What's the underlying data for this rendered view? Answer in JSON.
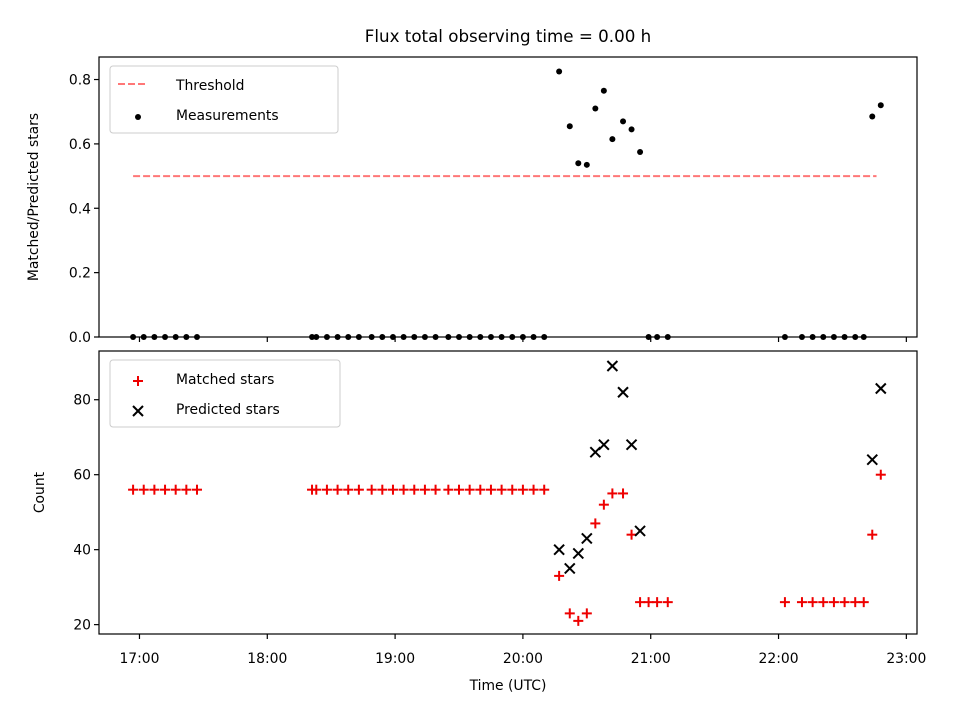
{
  "chart_data": [
    {
      "type": "scatter",
      "title": "Flux total observing time = 0.00 h",
      "ylabel": "Matched/Predicted stars",
      "xlabel": "",
      "ylim": [
        0,
        0.87
      ],
      "xlim": [
        "16:41",
        "23:05"
      ],
      "yticks": [
        {
          "value": 0.0,
          "label": "0.0"
        },
        {
          "value": 0.2,
          "label": "0.2"
        },
        {
          "value": 0.4,
          "label": "0.4"
        },
        {
          "value": 0.6,
          "label": "0.6"
        },
        {
          "value": 0.8,
          "label": "0.8"
        }
      ],
      "legend_position": "upper-left",
      "series": [
        {
          "name": "Threshold",
          "style": "dashed-line",
          "color": "#ff7777",
          "x": [
            "16:57",
            "22:46"
          ],
          "y": [
            0.5,
            0.5
          ]
        },
        {
          "name": "Measurements",
          "style": "dot",
          "color": "#000000",
          "x": [
            "16:57",
            "17:02",
            "17:07",
            "17:12",
            "17:17",
            "17:22",
            "17:27",
            "18:21",
            "18:23",
            "18:28",
            "18:33",
            "18:38",
            "18:43",
            "18:49",
            "18:54",
            "18:59",
            "19:04",
            "19:09",
            "19:14",
            "19:19",
            "19:25",
            "19:30",
            "19:35",
            "19:40",
            "19:45",
            "19:50",
            "19:55",
            "20:00",
            "20:05",
            "20:10",
            "20:17",
            "20:22",
            "20:26",
            "20:30",
            "20:34",
            "20:38",
            "20:42",
            "20:47",
            "20:51",
            "20:55",
            "20:59",
            "21:03",
            "21:08",
            "22:03",
            "22:11",
            "22:16",
            "22:21",
            "22:26",
            "22:31",
            "22:36",
            "22:40",
            "22:44",
            "22:48"
          ],
          "y": [
            0,
            0,
            0,
            0,
            0,
            0,
            0,
            0,
            0,
            0,
            0,
            0,
            0,
            0,
            0,
            0,
            0,
            0,
            0,
            0,
            0,
            0,
            0,
            0,
            0,
            0,
            0,
            0,
            0,
            0,
            0.825,
            0.655,
            0.54,
            0.535,
            0.71,
            0.765,
            0.615,
            0.67,
            0.645,
            0.575,
            0,
            0,
            0,
            0,
            0,
            0,
            0,
            0,
            0,
            0,
            0,
            0.685,
            0.72
          ]
        }
      ]
    },
    {
      "type": "scatter",
      "title": "",
      "ylabel": "Count",
      "xlabel": "Time (UTC)",
      "ylim": [
        17.5,
        93
      ],
      "xlim": [
        "16:41",
        "23:05"
      ],
      "yticks": [
        {
          "value": 20,
          "label": "20"
        },
        {
          "value": 40,
          "label": "40"
        },
        {
          "value": 60,
          "label": "60"
        },
        {
          "value": 80,
          "label": "80"
        }
      ],
      "xticks": [
        "17:00",
        "18:00",
        "19:00",
        "20:00",
        "21:00",
        "22:00",
        "23:00"
      ],
      "legend_position": "upper-left",
      "series": [
        {
          "name": "Matched stars",
          "style": "plus",
          "color": "#ee0000",
          "x": [
            "16:57",
            "17:02",
            "17:07",
            "17:12",
            "17:17",
            "17:22",
            "17:27",
            "18:21",
            "18:23",
            "18:28",
            "18:33",
            "18:38",
            "18:43",
            "18:49",
            "18:54",
            "18:59",
            "19:04",
            "19:09",
            "19:14",
            "19:19",
            "19:25",
            "19:30",
            "19:35",
            "19:40",
            "19:45",
            "19:50",
            "19:55",
            "20:00",
            "20:05",
            "20:10",
            "20:17",
            "20:22",
            "20:26",
            "20:30",
            "20:34",
            "20:38",
            "20:42",
            "20:47",
            "20:51",
            "20:55",
            "20:59",
            "21:03",
            "21:08",
            "22:03",
            "22:11",
            "22:16",
            "22:21",
            "22:26",
            "22:31",
            "22:36",
            "22:40",
            "22:44",
            "22:48"
          ],
          "y": [
            56,
            56,
            56,
            56,
            56,
            56,
            56,
            56,
            56,
            56,
            56,
            56,
            56,
            56,
            56,
            56,
            56,
            56,
            56,
            56,
            56,
            56,
            56,
            56,
            56,
            56,
            56,
            56,
            56,
            56,
            33,
            23,
            21,
            23,
            47,
            52,
            55,
            55,
            44,
            26,
            26,
            26,
            26,
            26,
            26,
            26,
            26,
            26,
            26,
            26,
            26,
            44,
            60
          ]
        },
        {
          "name": "Predicted stars",
          "style": "x",
          "color": "#000000",
          "x": [
            "20:17",
            "20:22",
            "20:26",
            "20:30",
            "20:34",
            "20:38",
            "20:42",
            "20:47",
            "20:51",
            "20:55",
            "22:44",
            "22:48"
          ],
          "y": [
            40,
            35,
            39,
            43,
            66,
            68,
            89,
            82,
            68,
            45,
            64,
            83
          ]
        }
      ]
    }
  ]
}
